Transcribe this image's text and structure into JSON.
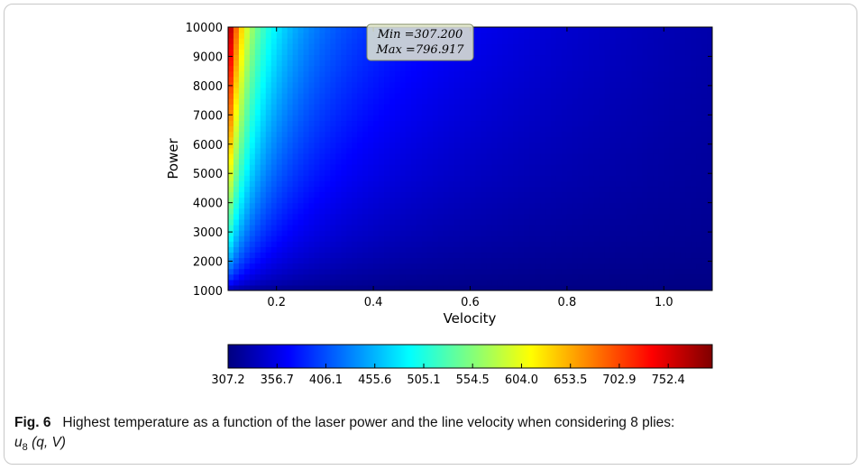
{
  "chart_data": {
    "type": "heatmap",
    "xlabel": "Velocity",
    "ylabel": "Power",
    "xlim": [
      0.1,
      1.1
    ],
    "ylim": [
      1000,
      10000
    ],
    "x_ticks": [
      0.2,
      0.4,
      0.6,
      0.8,
      1.0
    ],
    "x_tick_labels": [
      "0.2",
      "0.4",
      "0.6",
      "0.8",
      "1.0"
    ],
    "y_ticks": [
      1000,
      2000,
      3000,
      4000,
      5000,
      6000,
      7000,
      8000,
      9000,
      10000
    ],
    "y_tick_labels": [
      "1000",
      "2000",
      "3000",
      "4000",
      "5000",
      "6000",
      "7000",
      "8000",
      "9000",
      "10000"
    ],
    "annotation_lines": [
      "Min =307.200",
      "Max =796.917"
    ],
    "min_value": 307.2,
    "max_value": 796.917,
    "colorbar": {
      "ticks": [
        307.2,
        356.7,
        406.1,
        455.6,
        505.1,
        554.5,
        604.0,
        653.5,
        702.9,
        752.4
      ],
      "tick_labels": [
        "307.2",
        "356.7",
        "406.1",
        "455.6",
        "505.1",
        "554.5",
        "604.0",
        "653.5",
        "702.9",
        "752.4"
      ],
      "colormap": "jet",
      "colors": [
        "#00007f",
        "#0000ff",
        "#007fff",
        "#00ffff",
        "#7fff7f",
        "#ffff00",
        "#ff7f00",
        "#ff0000",
        "#7f0000"
      ]
    },
    "grid": false
  },
  "caption": {
    "label": "Fig. 6",
    "text": "Highest temperature as a function of the laser power and the line velocity when considering 8 plies:",
    "math_var": "u",
    "math_sub": "8",
    "math_args": "(q, V)"
  }
}
